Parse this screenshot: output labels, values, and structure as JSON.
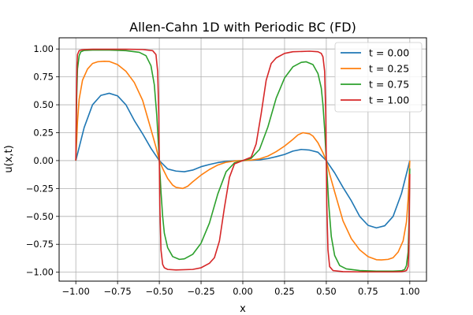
{
  "chart_data": {
    "type": "line",
    "title": "Allen-Cahn 1D with Periodic BC (FD)",
    "xlabel": "x",
    "ylabel": "u(x,t)",
    "xlim": [
      -1.1,
      1.1
    ],
    "ylim": [
      -1.08,
      1.1
    ],
    "xticks": [
      -1.0,
      -0.75,
      -0.5,
      -0.25,
      0.0,
      0.25,
      0.5,
      0.75,
      1.0
    ],
    "xtick_labels": [
      "−1.00",
      "−0.75",
      "−0.50",
      "−0.25",
      "0.00",
      "0.25",
      "0.50",
      "0.75",
      "1.00"
    ],
    "yticks": [
      -1.0,
      -0.75,
      -0.5,
      -0.25,
      0.0,
      0.25,
      0.5,
      0.75,
      1.0
    ],
    "ytick_labels": [
      "−1.00",
      "−0.75",
      "−0.50",
      "−0.25",
      "0.00",
      "0.25",
      "0.50",
      "0.75",
      "1.00"
    ],
    "grid": true,
    "legend_position": "top-right",
    "series": [
      {
        "name": "t = 0.00",
        "color": "#1f77b4",
        "x": [
          -1.0,
          -0.95,
          -0.9,
          -0.85,
          -0.8,
          -0.75,
          -0.7,
          -0.65,
          -0.6,
          -0.55,
          -0.5,
          -0.45,
          -0.4,
          -0.35,
          -0.3,
          -0.25,
          -0.2,
          -0.15,
          -0.1,
          -0.05,
          0.0,
          0.05,
          0.1,
          0.15,
          0.2,
          0.25,
          0.3,
          0.35,
          0.4,
          0.45,
          0.5,
          0.55,
          0.6,
          0.65,
          0.7,
          0.75,
          0.8,
          0.85,
          0.9,
          0.95,
          1.0
        ],
        "y": [
          0.0,
          0.296,
          0.5,
          0.584,
          0.603,
          0.58,
          0.5,
          0.36,
          0.24,
          0.11,
          0.0,
          -0.075,
          -0.094,
          -0.1,
          -0.085,
          -0.055,
          -0.035,
          -0.018,
          -0.007,
          -0.002,
          0.0,
          0.002,
          0.007,
          0.018,
          0.035,
          0.055,
          0.085,
          0.1,
          0.094,
          0.075,
          0.0,
          -0.11,
          -0.24,
          -0.36,
          -0.5,
          -0.58,
          -0.603,
          -0.584,
          -0.5,
          -0.296,
          0.0
        ]
      },
      {
        "name": "t = 0.25",
        "color": "#ff7f0e",
        "x": [
          -1.0,
          -0.99,
          -0.98,
          -0.96,
          -0.93,
          -0.9,
          -0.87,
          -0.83,
          -0.8,
          -0.75,
          -0.7,
          -0.65,
          -0.6,
          -0.55,
          -0.52,
          -0.5,
          -0.48,
          -0.45,
          -0.42,
          -0.4,
          -0.36,
          -0.33,
          -0.3,
          -0.25,
          -0.2,
          -0.15,
          -0.1,
          -0.05,
          0.0,
          0.05,
          0.1,
          0.15,
          0.2,
          0.25,
          0.3,
          0.33,
          0.36,
          0.4,
          0.42,
          0.45,
          0.48,
          0.5,
          0.52,
          0.55,
          0.6,
          0.65,
          0.7,
          0.75,
          0.8,
          0.83,
          0.87,
          0.9,
          0.93,
          0.96,
          0.98,
          0.99,
          1.0
        ],
        "y": [
          0.0,
          0.35,
          0.55,
          0.72,
          0.82,
          0.87,
          0.885,
          0.89,
          0.888,
          0.86,
          0.8,
          0.7,
          0.54,
          0.28,
          0.12,
          0.0,
          -0.07,
          -0.16,
          -0.22,
          -0.24,
          -0.25,
          -0.23,
          -0.19,
          -0.13,
          -0.08,
          -0.04,
          -0.015,
          -0.004,
          0.0,
          0.004,
          0.015,
          0.04,
          0.08,
          0.13,
          0.19,
          0.23,
          0.25,
          0.24,
          0.22,
          0.16,
          0.07,
          0.0,
          -0.12,
          -0.28,
          -0.54,
          -0.7,
          -0.8,
          -0.86,
          -0.888,
          -0.89,
          -0.885,
          -0.87,
          -0.82,
          -0.72,
          -0.55,
          -0.35,
          0.0
        ]
      },
      {
        "name": "t = 0.75",
        "color": "#2ca02c",
        "x": [
          -1.0,
          -0.995,
          -0.99,
          -0.98,
          -0.97,
          -0.95,
          -0.9,
          -0.85,
          -0.8,
          -0.7,
          -0.62,
          -0.58,
          -0.55,
          -0.53,
          -0.515,
          -0.5,
          -0.49,
          -0.48,
          -0.47,
          -0.45,
          -0.42,
          -0.38,
          -0.35,
          -0.3,
          -0.25,
          -0.2,
          -0.15,
          -0.1,
          -0.05,
          0.0,
          0.05,
          0.1,
          0.15,
          0.2,
          0.25,
          0.3,
          0.35,
          0.38,
          0.42,
          0.45,
          0.47,
          0.48,
          0.49,
          0.5,
          0.515,
          0.53,
          0.55,
          0.58,
          0.62,
          0.7,
          0.8,
          0.85,
          0.9,
          0.95,
          0.97,
          0.98,
          0.99,
          0.995,
          1.0
        ],
        "y": [
          0.0,
          0.55,
          0.82,
          0.94,
          0.975,
          0.987,
          0.99,
          0.99,
          0.99,
          0.985,
          0.97,
          0.94,
          0.85,
          0.68,
          0.4,
          0.0,
          -0.28,
          -0.5,
          -0.65,
          -0.78,
          -0.86,
          -0.885,
          -0.88,
          -0.84,
          -0.74,
          -0.56,
          -0.3,
          -0.1,
          -0.02,
          0.0,
          0.02,
          0.1,
          0.3,
          0.56,
          0.74,
          0.84,
          0.88,
          0.885,
          0.86,
          0.78,
          0.65,
          0.5,
          0.28,
          0.0,
          -0.4,
          -0.68,
          -0.85,
          -0.94,
          -0.97,
          -0.985,
          -0.99,
          -0.99,
          -0.99,
          -0.987,
          -0.975,
          -0.94,
          -0.82,
          -0.55,
          -0.07
        ]
      },
      {
        "name": "t = 1.00",
        "color": "#d62728",
        "x": [
          -1.0,
          -0.997,
          -0.993,
          -0.99,
          -0.98,
          -0.97,
          -0.95,
          -0.9,
          -0.8,
          -0.7,
          -0.6,
          -0.54,
          -0.52,
          -0.51,
          -0.503,
          -0.5,
          -0.497,
          -0.49,
          -0.48,
          -0.47,
          -0.45,
          -0.4,
          -0.3,
          -0.25,
          -0.2,
          -0.17,
          -0.14,
          -0.11,
          -0.08,
          -0.05,
          0.0,
          0.05,
          0.08,
          0.11,
          0.14,
          0.17,
          0.2,
          0.25,
          0.3,
          0.4,
          0.45,
          0.47,
          0.48,
          0.49,
          0.497,
          0.5,
          0.503,
          0.51,
          0.52,
          0.54,
          0.6,
          0.7,
          0.8,
          0.9,
          0.95,
          0.97,
          0.98,
          0.99,
          0.993,
          0.997,
          1.0
        ],
        "y": [
          0.0,
          0.5,
          0.85,
          0.95,
          0.985,
          0.99,
          0.995,
          0.997,
          0.997,
          0.997,
          0.995,
          0.985,
          0.95,
          0.8,
          0.4,
          0.0,
          -0.4,
          -0.8,
          -0.93,
          -0.96,
          -0.975,
          -0.98,
          -0.975,
          -0.96,
          -0.92,
          -0.87,
          -0.72,
          -0.42,
          -0.15,
          -0.03,
          0.0,
          0.03,
          0.15,
          0.42,
          0.72,
          0.87,
          0.92,
          0.96,
          0.975,
          0.98,
          0.975,
          0.96,
          0.93,
          0.8,
          0.4,
          0.0,
          -0.4,
          -0.8,
          -0.95,
          -0.985,
          -0.995,
          -0.997,
          -0.997,
          -0.997,
          -0.995,
          -0.99,
          -0.985,
          -0.95,
          -0.85,
          -0.5,
          -0.12
        ]
      }
    ]
  }
}
